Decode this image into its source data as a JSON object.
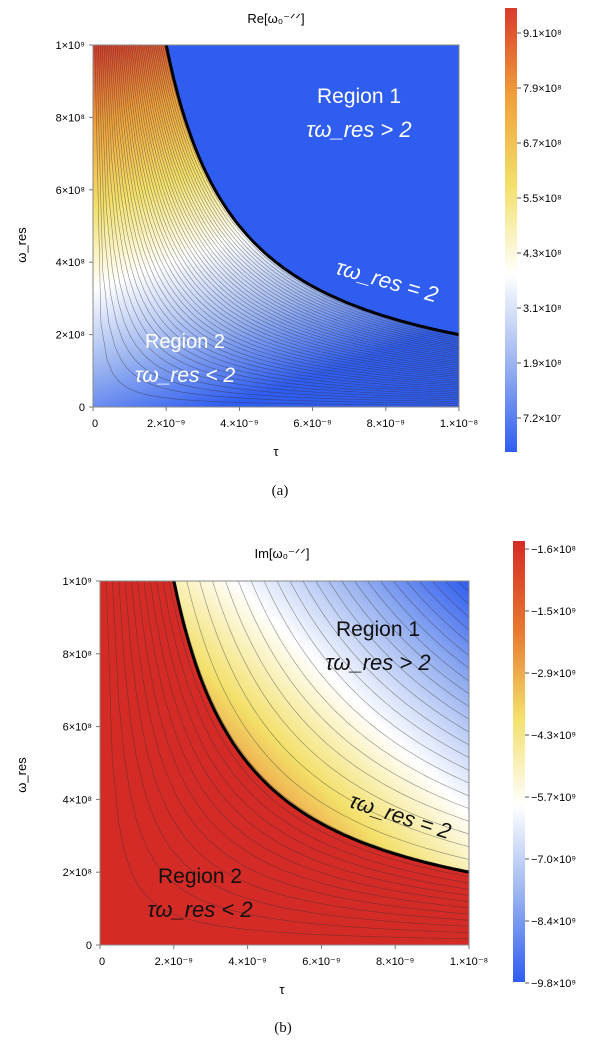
{
  "chart_data": [
    {
      "panel": "a",
      "type": "heatmap",
      "title": "Re[ω₀⁻ᐟᐟ]",
      "xlabel": "τ",
      "ylabel": "ω_res",
      "xlim": [
        0,
        1e-08
      ],
      "ylim": [
        0,
        1000000000.0
      ],
      "x_ticks": [
        "0",
        "2.×10⁻⁹",
        "4.×10⁻⁹",
        "6.×10⁻⁹",
        "8.×10⁻⁹",
        "1.×10⁻⁸"
      ],
      "y_ticks": [
        "0",
        "2×10⁸",
        "4×10⁸",
        "6×10⁸",
        "8×10⁸",
        "1×10⁹"
      ],
      "colorbar_ticks": [
        "9.1×10⁸",
        "7.9×10⁸",
        "6.7×10⁸",
        "5.5×10⁸",
        "4.3×10⁸",
        "3.1×10⁸",
        "1.9×10⁸",
        "7.2×10⁷"
      ],
      "colorbar_colors": [
        "#d93a2b",
        "#f0a13a",
        "#f3e06a",
        "#ffffff",
        "#9bb4f0",
        "#2f5df0"
      ],
      "boundary": "τ·ω_res = 2",
      "annotations": [
        {
          "lines": [
            "Region 1",
            "τω_res > 2"
          ]
        },
        {
          "lines": [
            "Region 2",
            "τω_res < 2"
          ]
        },
        {
          "lines": [
            "τω_res = 2"
          ]
        }
      ],
      "caption": "(a)"
    },
    {
      "panel": "b",
      "type": "heatmap",
      "title": "Im[ω₀⁻ᐟᐟ]",
      "xlabel": "τ",
      "ylabel": "ω_res",
      "xlim": [
        0,
        1e-08
      ],
      "ylim": [
        0,
        1000000000.0
      ],
      "x_ticks": [
        "0",
        "2.×10⁻⁹",
        "4.×10⁻⁹",
        "6.×10⁻⁹",
        "8.×10⁻⁹",
        "1.×10⁻⁸"
      ],
      "y_ticks": [
        "0",
        "2×10⁸",
        "4×10⁸",
        "6×10⁸",
        "8×10⁸",
        "1×10⁹"
      ],
      "colorbar_ticks": [
        "−1.6×10⁸",
        "−1.5×10⁹",
        "−2.9×10⁹",
        "−4.3×10⁹",
        "−5.7×10⁹",
        "−7.0×10⁹",
        "−8.4×10⁹",
        "−9.8×10⁹"
      ],
      "colorbar_colors": [
        "#d42b27",
        "#e8772e",
        "#f3e06a",
        "#ffffff",
        "#9bb4f0",
        "#2f5df0"
      ],
      "boundary": "τ·ω_res = 2",
      "annotations": [
        {
          "lines": [
            "Region 1",
            "τω_res > 2"
          ]
        },
        {
          "lines": [
            "Region 2",
            "τω_res < 2"
          ]
        },
        {
          "lines": [
            "τω_res = 2"
          ]
        }
      ],
      "caption": "(b)"
    }
  ]
}
